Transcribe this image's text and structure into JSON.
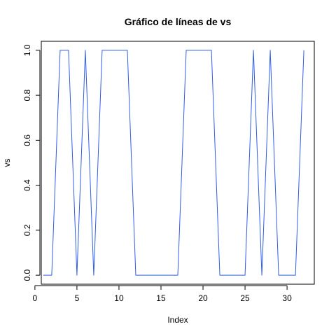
{
  "chart_data": {
    "type": "line",
    "title": "Gráfico de líneas de  vs",
    "xlabel": "Index",
    "ylabel": "vs",
    "xlim": [
      0.76,
      33.24
    ],
    "ylim": [
      -0.04,
      1.04
    ],
    "x_ticks": [
      0,
      5,
      10,
      15,
      20,
      25,
      30
    ],
    "y_ticks": [
      0.0,
      0.2,
      0.4,
      0.6,
      0.8,
      1.0
    ],
    "x_tick_labels": [
      "0",
      "5",
      "10",
      "15",
      "20",
      "25",
      "30"
    ],
    "y_tick_labels": [
      "0.0",
      "0.2",
      "0.4",
      "0.6",
      "0.8",
      "1.0"
    ],
    "grid": false,
    "line_color": "#2f5ce8",
    "series": [
      {
        "x": [
          1,
          2,
          3,
          4,
          5,
          6,
          7,
          8,
          9,
          10,
          11,
          12,
          13,
          14,
          15,
          16,
          17,
          18,
          19,
          20,
          21,
          22,
          23,
          24,
          25,
          26,
          27,
          28,
          29,
          30,
          31,
          32
        ],
        "values": [
          0,
          0,
          1,
          1,
          0,
          1,
          0,
          1,
          1,
          1,
          1,
          0,
          0,
          0,
          0,
          0,
          0,
          1,
          1,
          1,
          1,
          0,
          0,
          0,
          0,
          1,
          0,
          1,
          0,
          0,
          0,
          1
        ]
      }
    ]
  }
}
